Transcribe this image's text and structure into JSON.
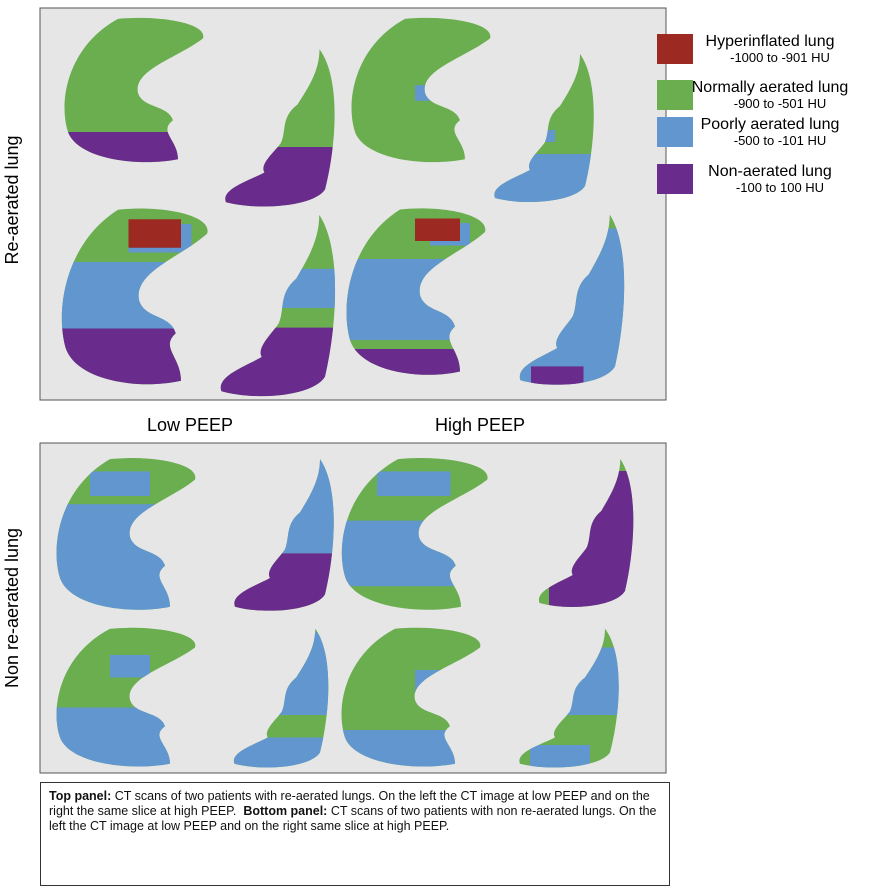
{
  "figure": {
    "row_labels": [
      "Re-aerated lung",
      "Non re-aerated lung"
    ],
    "column_labels": [
      "Low PEEP",
      "High PEEP"
    ],
    "legend": [
      {
        "name": "Hyperinflated lung",
        "range": "-1000 to -901 HU"
      },
      {
        "name": "Normally aerated lung",
        "range": "-900 to -501 HU"
      },
      {
        "name": "Poorly aerated lung",
        "range": "-500 to -101 HU"
      },
      {
        "name": "Non-aerated lung",
        "range": "-100 to 100 HU"
      }
    ],
    "caption": {
      "top_label": "Top panel:",
      "top_text": " CT scans of two patients with re-aerated lungs. On the left the CT image at low PEEP and on the right the same slice at high PEEP.",
      "bottom_label": "Bottom panel:",
      "bottom_text": " CT scans of two patients with non re-aerated lungs. On the left the CT image at low PEEP and on the right same slice at high PEEP."
    }
  }
}
